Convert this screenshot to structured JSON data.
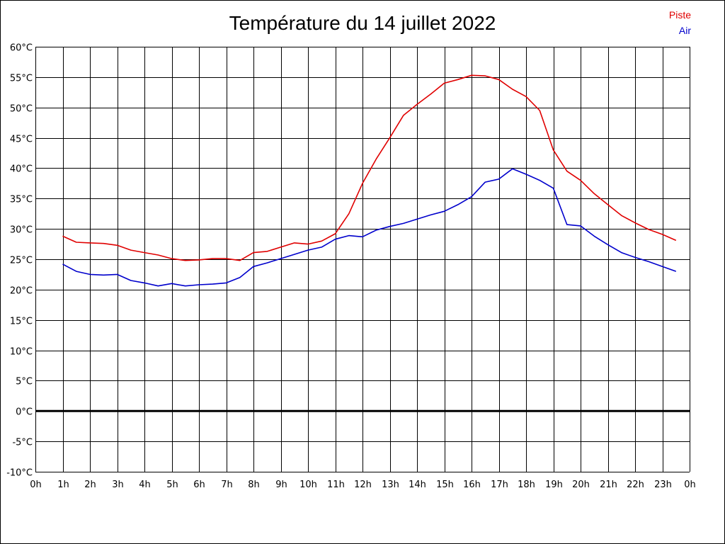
{
  "chart_data": {
    "type": "line",
    "title": "Température du 14 juillet 2022",
    "x_tick_labels": [
      "0h",
      "1h",
      "2h",
      "3h",
      "4h",
      "5h",
      "6h",
      "7h",
      "8h",
      "9h",
      "10h",
      "11h",
      "12h",
      "13h",
      "14h",
      "15h",
      "16h",
      "17h",
      "18h",
      "19h",
      "20h",
      "21h",
      "22h",
      "23h",
      "0h"
    ],
    "y_tick_labels": [
      "-10°C",
      "-5°C",
      "0°C",
      "5°C",
      "10°C",
      "15°C",
      "20°C",
      "25°C",
      "30°C",
      "35°C",
      "40°C",
      "45°C",
      "50°C",
      "55°C",
      "60°C"
    ],
    "xlim": [
      0,
      24
    ],
    "ylim": [
      -10,
      60
    ],
    "grid": true,
    "legend_position": "top-right",
    "series": [
      {
        "name": "Piste",
        "color": "#e00000",
        "x": [
          1,
          1.5,
          2,
          2.5,
          3,
          3.5,
          4,
          4.5,
          5,
          5.5,
          6,
          6.5,
          7,
          7.5,
          8,
          8.5,
          9,
          9.5,
          10,
          10.5,
          11,
          11.5,
          12,
          12.5,
          13,
          13.5,
          14,
          14.5,
          15,
          15.5,
          16,
          16.5,
          17,
          17.5,
          18,
          18.5,
          19,
          19.5,
          20,
          20.5,
          21,
          21.5,
          22,
          22.5,
          23,
          23.5
        ],
        "values": [
          28.8,
          27.8,
          27.7,
          27.6,
          27.3,
          26.5,
          26.1,
          25.7,
          25.1,
          24.8,
          24.9,
          25.1,
          25.1,
          24.8,
          26.1,
          26.3,
          27.0,
          27.7,
          27.5,
          28.0,
          29.2,
          32.5,
          37.5,
          41.5,
          45.0,
          48.7,
          50.5,
          52.2,
          54.0,
          54.6,
          55.3,
          55.2,
          54.6,
          53.0,
          51.8,
          49.5,
          43.0,
          39.5,
          38.0,
          35.8,
          34.0,
          32.2,
          31.0,
          29.9,
          29.1,
          28.1
        ]
      },
      {
        "name": "Air",
        "color": "#0000cc",
        "x": [
          1,
          1.5,
          2,
          2.5,
          3,
          3.5,
          4,
          4.5,
          5,
          5.5,
          6,
          6.5,
          7,
          7.5,
          8,
          8.5,
          9,
          9.5,
          10,
          10.5,
          11,
          11.5,
          12,
          12.5,
          13,
          13.5,
          14,
          14.5,
          15,
          15.5,
          16,
          16.5,
          17,
          17.5,
          18,
          18.5,
          19,
          19.5,
          20,
          20.5,
          21,
          21.5,
          22,
          22.5,
          23,
          23.5
        ],
        "values": [
          24.2,
          23.0,
          22.5,
          22.4,
          22.5,
          21.5,
          21.1,
          20.6,
          21.0,
          20.6,
          20.8,
          20.9,
          21.1,
          22.0,
          23.8,
          24.4,
          25.1,
          25.8,
          26.5,
          27.0,
          28.3,
          28.9,
          28.7,
          29.8,
          30.4,
          30.9,
          31.6,
          32.3,
          32.9,
          34.0,
          35.3,
          37.7,
          38.2,
          39.9,
          39.0,
          38.0,
          36.7,
          30.7,
          30.5,
          28.8,
          27.4,
          26.1,
          25.3,
          24.6,
          23.8,
          23.0
        ]
      }
    ]
  }
}
